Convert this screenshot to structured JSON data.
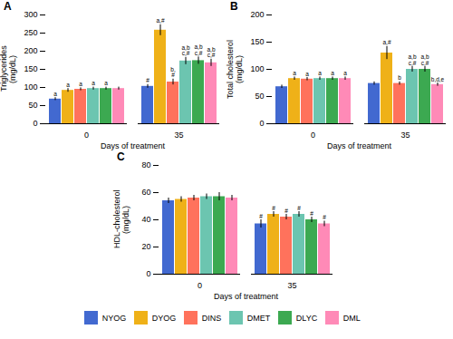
{
  "chart_data": [
    {
      "type": "bar",
      "title": "A",
      "ylabel": "Triglycerides\n(mg/dL)",
      "xlabel": "Days of treatment",
      "categories": [
        "0",
        "35"
      ],
      "ylim": [
        0,
        300
      ],
      "yticks": [
        0,
        50,
        100,
        150,
        200,
        250,
        300
      ],
      "series": [
        {
          "name": "NYOG",
          "values": [
            68,
            103
          ],
          "errors": [
            4,
            5
          ],
          "annotations": [
            "a",
            "#"
          ]
        },
        {
          "name": "DYOG",
          "values": [
            92,
            258
          ],
          "errors": [
            5,
            15
          ],
          "annotations": [
            "a",
            "a,#"
          ]
        },
        {
          "name": "DINS",
          "values": [
            95,
            115
          ],
          "errors": [
            4,
            8
          ],
          "annotations": [
            "a",
            "b,\n#"
          ]
        },
        {
          "name": "DMET",
          "values": [
            97,
            173
          ],
          "errors": [
            4,
            10
          ],
          "annotations": [
            "a",
            "a,b\nc,#"
          ]
        },
        {
          "name": "DLYC",
          "values": [
            97,
            174
          ],
          "errors": [
            4,
            10
          ],
          "annotations": [
            "a",
            "a,b\nc,#"
          ]
        },
        {
          "name": "DML",
          "values": [
            97,
            168
          ],
          "errors": [
            4,
            10
          ],
          "annotations": [
            null,
            "a,b\nc,#"
          ]
        }
      ]
    },
    {
      "type": "bar",
      "title": "B",
      "ylabel": "Total cholesterol\n(mg/dL)",
      "xlabel": "Days of treatment",
      "categories": [
        "0",
        "35"
      ],
      "ylim": [
        0,
        200
      ],
      "yticks": [
        0,
        50,
        100,
        150,
        200
      ],
      "series": [
        {
          "name": "NYOG",
          "values": [
            68,
            74
          ],
          "errors": [
            3,
            3
          ],
          "annotations": [
            null,
            null
          ]
        },
        {
          "name": "DYOG",
          "values": [
            83,
            130
          ],
          "errors": [
            3,
            12
          ],
          "annotations": [
            "a",
            "a,#"
          ]
        },
        {
          "name": "DINS",
          "values": [
            82,
            74
          ],
          "errors": [
            3,
            3
          ],
          "annotations": [
            "a",
            "b"
          ]
        },
        {
          "name": "DMET",
          "values": [
            83,
            100
          ],
          "errors": [
            3,
            5
          ],
          "annotations": [
            "a",
            "a,b\nc,#"
          ]
        },
        {
          "name": "DLYC",
          "values": [
            83,
            100
          ],
          "errors": [
            3,
            5
          ],
          "annotations": [
            "a",
            "a,b\nc,#"
          ]
        },
        {
          "name": "DML",
          "values": [
            83,
            72
          ],
          "errors": [
            3,
            3
          ],
          "annotations": [
            "a",
            "b,d,e"
          ]
        }
      ]
    },
    {
      "type": "bar",
      "title": "C",
      "ylabel": "HDL-cholesterol\n(mg/dL)",
      "xlabel": "Days of treatment",
      "categories": [
        "0",
        "35"
      ],
      "ylim": [
        0,
        80
      ],
      "yticks": [
        0,
        20,
        40,
        60,
        80
      ],
      "legend": "bottom",
      "series": [
        {
          "name": "NYOG",
          "values": [
            54,
            37
          ],
          "errors": [
            2,
            3
          ],
          "annotations": [
            null,
            "#"
          ]
        },
        {
          "name": "DYOG",
          "values": [
            55,
            44
          ],
          "errors": [
            2,
            2
          ],
          "annotations": [
            null,
            "#"
          ]
        },
        {
          "name": "DINS",
          "values": [
            56,
            42
          ],
          "errors": [
            2,
            2
          ],
          "annotations": [
            null,
            "#"
          ]
        },
        {
          "name": "DMET",
          "values": [
            57,
            44
          ],
          "errors": [
            2,
            2
          ],
          "annotations": [
            null,
            "#"
          ]
        },
        {
          "name": "DLYC",
          "values": [
            57,
            40
          ],
          "errors": [
            3,
            2
          ],
          "annotations": [
            null,
            "#"
          ]
        },
        {
          "name": "DML",
          "values": [
            56,
            37
          ],
          "errors": [
            2,
            2
          ],
          "annotations": [
            null,
            "#"
          ]
        }
      ]
    }
  ]
}
